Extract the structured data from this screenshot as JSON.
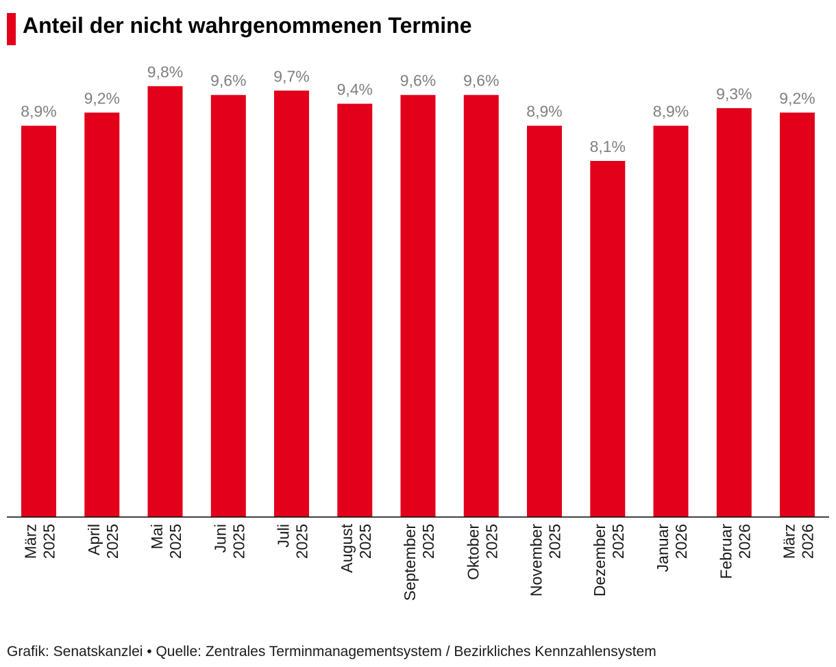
{
  "title": "Anteil der nicht wahrgenommenen Termine",
  "source": "Grafik: Senatskanzlei • Quelle: Zentrales Terminmanagementsystem / Bezirkliches Kennzahlensystem",
  "colors": {
    "bar": "#e2001a",
    "label": "#7f7f7f",
    "axis": "#000000",
    "accent": "#e2001a"
  },
  "chart_data": {
    "type": "bar",
    "title": "Anteil der nicht wahrgenommenen Termine",
    "xlabel": "",
    "ylabel": "",
    "ylim": [
      0,
      10
    ],
    "grid": false,
    "unit": "%",
    "categories": [
      [
        "März",
        "2025"
      ],
      [
        "April",
        "2025"
      ],
      [
        "Mai",
        "2025"
      ],
      [
        "Juni",
        "2025"
      ],
      [
        "Juli",
        "2025"
      ],
      [
        "August",
        "2025"
      ],
      [
        "September",
        "2025"
      ],
      [
        "Oktober",
        "2025"
      ],
      [
        "November",
        "2025"
      ],
      [
        "Dezember",
        "2025"
      ],
      [
        "Januar",
        "2026"
      ],
      [
        "Februar",
        "2026"
      ],
      [
        "März",
        "2026"
      ]
    ],
    "values": [
      8.9,
      9.2,
      9.8,
      9.6,
      9.7,
      9.4,
      9.6,
      9.6,
      8.9,
      8.1,
      8.9,
      9.3,
      9.2
    ],
    "value_labels": [
      "8,9%",
      "9,2%",
      "9,8%",
      "9,6%",
      "9,7%",
      "9,4%",
      "9,6%",
      "9,6%",
      "8,9%",
      "8,1%",
      "8,9%",
      "9,3%",
      "9,2%"
    ]
  }
}
